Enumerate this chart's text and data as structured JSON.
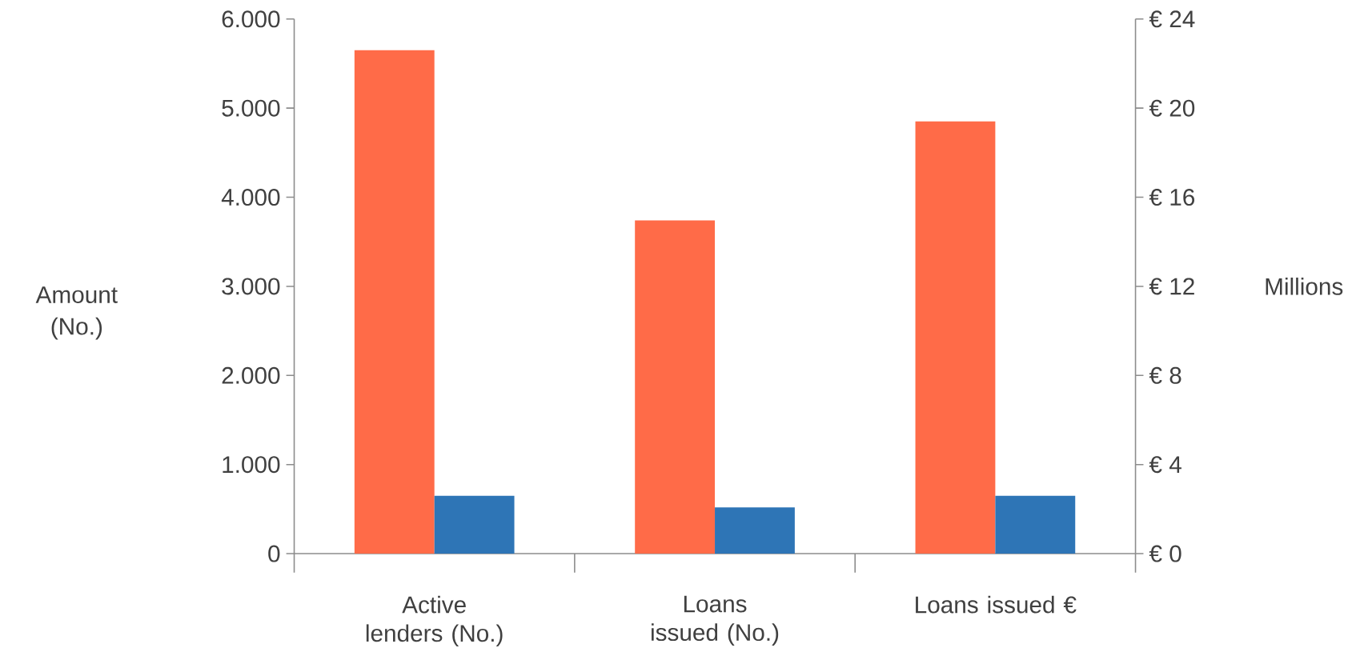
{
  "chart_data": {
    "type": "bar",
    "categories": [
      "Active lenders (No.)",
      "Loans issued (No.)",
      "Loans issued €"
    ],
    "ylabel": "Amount (No.)",
    "y2label": "Millions",
    "ylim": [
      0,
      6000
    ],
    "yticks": [
      0,
      {
        "value": 1000,
        "label": "1.000"
      },
      {
        "value": 2000,
        "label": "2.000"
      },
      {
        "value": 3000,
        "label": "3.000"
      },
      {
        "value": 4000,
        "label": "4.000"
      },
      {
        "value": 5000,
        "label": "5.000"
      },
      {
        "value": 6000,
        "label": "6.000"
      }
    ],
    "y2lim": [
      0,
      24
    ],
    "y2ticks": [
      {
        "value": 0,
        "label": "€ 0"
      },
      {
        "value": 4,
        "label": "€ 4"
      },
      {
        "value": 8,
        "label": "€ 8"
      },
      {
        "value": 12,
        "label": "€ 12"
      },
      {
        "value": 16,
        "label": "€ 16"
      },
      {
        "value": 20,
        "label": "€ 20"
      },
      {
        "value": 24,
        "label": "€ 24"
      }
    ],
    "series": [
      {
        "color": "#ff6b48",
        "values": [
          5650,
          3740,
          null
        ]
      },
      {
        "color": "#2e75b6",
        "values": [
          650,
          520,
          null
        ]
      },
      {
        "color": "#ff6b48",
        "axis": "y2",
        "values": [
          null,
          null,
          19.4
        ]
      },
      {
        "color": "#2e75b6",
        "axis": "y2",
        "values": [
          null,
          null,
          2.6
        ]
      }
    ],
    "grid": false,
    "legend": false
  }
}
